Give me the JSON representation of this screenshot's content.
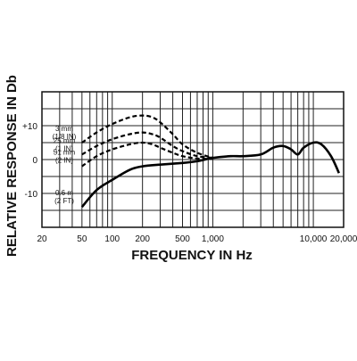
{
  "chart_data": {
    "type": "line",
    "title": "",
    "xlabel": "FREQUENCY IN Hz",
    "ylabel": "RELATIVE RESPONSE IN Db",
    "x_scale": "log",
    "xlim": [
      20,
      20000
    ],
    "ylim": [
      -20,
      20
    ],
    "grid": true,
    "legend": "none",
    "x_ticks": [
      {
        "value": 20,
        "label": "20"
      },
      {
        "value": 50,
        "label": "50"
      },
      {
        "value": 100,
        "label": "100"
      },
      {
        "value": 200,
        "label": "200"
      },
      {
        "value": 500,
        "label": "500"
      },
      {
        "value": 1000,
        "label": "1,000"
      },
      {
        "value": 10000,
        "label": "10,000"
      },
      {
        "value": 20000,
        "label": "20,000"
      }
    ],
    "y_ticks": [
      {
        "value": 10,
        "label": "+10"
      },
      {
        "value": 0,
        "label": "0"
      },
      {
        "value": -10,
        "label": "-10"
      }
    ],
    "series": [
      {
        "name": "3 mm (1/8 IN)",
        "name_lines": [
          "3 mm",
          "(1/8 IN)"
        ],
        "style": "dashed",
        "x": [
          50,
          70,
          100,
          150,
          200,
          250,
          300,
          400,
          500,
          700,
          1000
        ],
        "y": [
          5,
          8,
          10.5,
          12.5,
          13,
          12.5,
          11,
          7.5,
          4.5,
          2,
          0.5
        ]
      },
      {
        "name": "25 mm (1 IN)",
        "name_lines": [
          "25 mm",
          "(1 IN)"
        ],
        "style": "dashed",
        "x": [
          50,
          70,
          100,
          150,
          200,
          250,
          300,
          400,
          500,
          700,
          1000
        ],
        "y": [
          1.5,
          4,
          6,
          7.5,
          8,
          7.5,
          6.5,
          4,
          2.5,
          1,
          0.5
        ]
      },
      {
        "name": "51 mm (2 IN)",
        "name_lines": [
          "51 mm",
          "(2 IN)"
        ],
        "style": "dashed",
        "x": [
          50,
          70,
          100,
          150,
          200,
          250,
          300,
          400,
          500,
          700,
          1000
        ],
        "y": [
          -2,
          1,
          3,
          4.5,
          5,
          4.5,
          3.5,
          2,
          1,
          0.3,
          0.2
        ]
      },
      {
        "name": "0.6 m (2 FT)",
        "name_lines": [
          "0.6 m",
          "(2 FT)"
        ],
        "style": "solid",
        "x": [
          50,
          70,
          100,
          150,
          200,
          300,
          500,
          700,
          1000,
          1500,
          2000,
          3000,
          4000,
          5000,
          6000,
          7000,
          8000,
          10000,
          12000,
          15000,
          18000
        ],
        "y": [
          -14,
          -9,
          -6,
          -3,
          -2,
          -1.5,
          -1,
          -0.5,
          0.5,
          1,
          1,
          1.5,
          3.5,
          4,
          3,
          1.5,
          3.5,
          5,
          4.5,
          1,
          -4
        ]
      }
    ]
  }
}
